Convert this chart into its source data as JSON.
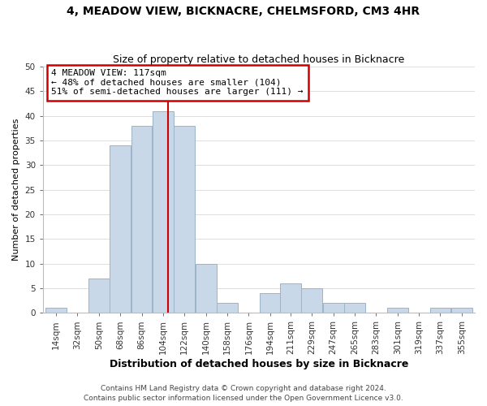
{
  "title1": "4, MEADOW VIEW, BICKNACRE, CHELMSFORD, CM3 4HR",
  "title2": "Size of property relative to detached houses in Bicknacre",
  "xlabel": "Distribution of detached houses by size in Bicknacre",
  "ylabel": "Number of detached properties",
  "bin_edges": [
    14,
    32,
    50,
    68,
    86,
    104,
    122,
    140,
    158,
    176,
    194,
    211,
    229,
    247,
    265,
    283,
    301,
    319,
    337,
    355,
    373
  ],
  "counts": [
    1,
    0,
    7,
    34,
    38,
    41,
    38,
    10,
    2,
    0,
    4,
    6,
    5,
    2,
    2,
    0,
    1,
    0,
    1,
    1
  ],
  "bar_color": "#c8d8e8",
  "bar_edge_color": "#9ab4c8",
  "property_line_x": 117,
  "property_line_color": "#cc0000",
  "annotation_title": "4 MEADOW VIEW: 117sqm",
  "annotation_line1": "← 48% of detached houses are smaller (104)",
  "annotation_line2": "51% of semi-detached houses are larger (111) →",
  "annotation_box_color": "#ffffff",
  "annotation_box_edge": "#cc0000",
  "footer1": "Contains HM Land Registry data © Crown copyright and database right 2024.",
  "footer2": "Contains public sector information licensed under the Open Government Licence v3.0.",
  "ylim": [
    0,
    50
  ],
  "yticks": [
    0,
    5,
    10,
    15,
    20,
    25,
    30,
    35,
    40,
    45,
    50
  ],
  "background_color": "#ffffff",
  "grid_color": "#dddddd",
  "title1_fontsize": 10,
  "title2_fontsize": 9,
  "ylabel_fontsize": 8,
  "xlabel_fontsize": 9,
  "footer_fontsize": 6.5,
  "tick_labelsize": 7.5,
  "annotation_fontsize": 8
}
